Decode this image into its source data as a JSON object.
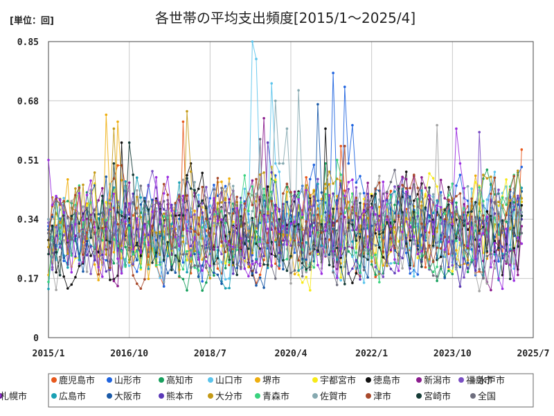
{
  "chart_data": {
    "type": "line",
    "title": "各世帯の平均支出頻度[2015/1～2025/4]",
    "unit_label": "[単位：回]",
    "xlabel": "",
    "ylabel": "",
    "x_range": [
      "2015-01",
      "2025-07"
    ],
    "x_ticks": [
      "2015/1",
      "2016/10",
      "2018/7",
      "2020/4",
      "2022/1",
      "2023/10",
      "2025/7"
    ],
    "y_ticks": [
      "0",
      "0.17",
      "0.34",
      "0.51",
      "0.68",
      "0.85"
    ],
    "ylim": [
      0,
      0.85
    ],
    "grid": true,
    "legend_position": "bottom",
    "series": [
      {
        "name": "鹿児島市",
        "color": "#e8581c",
        "start": 0.3,
        "end": 0.54,
        "peaks": [
          [
            "2017-12",
            0.62
          ],
          [
            "2021-05",
            0.55
          ]
        ]
      },
      {
        "name": "山形市",
        "color": "#1f64e0",
        "start": 0.32,
        "end": 0.49,
        "peaks": [
          [
            "2021-03",
            0.76
          ],
          [
            "2021-06",
            0.72
          ],
          [
            "2021-08",
            0.61
          ]
        ]
      },
      {
        "name": "高知市",
        "color": "#17a05d",
        "start": 0.3,
        "end": 0.42,
        "peaks": [
          [
            "2021-01",
            0.5
          ]
        ]
      },
      {
        "name": "山口市",
        "color": "#5bc4ec",
        "start": 0.3,
        "end": 0.43,
        "peaks": [
          [
            "2019-06",
            0.85
          ],
          [
            "2019-07",
            0.8
          ],
          [
            "2019-11",
            0.73
          ]
        ]
      },
      {
        "name": "堺市",
        "color": "#eeae0e",
        "start": 0.18,
        "end": 0.39,
        "peaks": [
          [
            "2016-04",
            0.64
          ],
          [
            "2016-07",
            0.62
          ]
        ]
      },
      {
        "name": "宇都宮市",
        "color": "#f7ea18",
        "start": 0.28,
        "end": 0.4,
        "peaks": [
          [
            "2019-11",
            0.49
          ]
        ]
      },
      {
        "name": "徳島市",
        "color": "#111111",
        "start": 0.28,
        "end": 0.38,
        "peaks": [
          [
            "2016-08",
            0.56
          ],
          [
            "2021-01",
            0.6
          ]
        ]
      },
      {
        "name": "新潟市",
        "color": "#8b1c8e",
        "start": 0.26,
        "end": 0.32,
        "peaks": [
          [
            "2019-09",
            0.63
          ]
        ]
      },
      {
        "name": "水戸市",
        "color": "#a3a3a3",
        "start": 0.34,
        "end": 0.36,
        "peaks": [
          [
            "2023-06",
            0.61
          ]
        ]
      },
      {
        "name": "福島市",
        "color": "#7a4fc4",
        "start": 0.33,
        "end": 0.35,
        "peaks": [
          [
            "2024-05",
            0.59
          ]
        ]
      },
      {
        "name": "広島市",
        "color": "#1aa0b4",
        "start": 0.14,
        "end": 0.43,
        "peaks": [
          [
            "2021-02",
            0.4
          ]
        ]
      },
      {
        "name": "大阪市",
        "color": "#1a5aa8",
        "start": 0.31,
        "end": 0.42,
        "peaks": [
          [
            "2020-11",
            0.67
          ]
        ]
      },
      {
        "name": "熊本市",
        "color": "#5b39b8",
        "start": 0.34,
        "end": 0.34,
        "peaks": [
          [
            "2019-10",
            0.56
          ]
        ]
      },
      {
        "name": "大分市",
        "color": "#c49a17",
        "start": 0.26,
        "end": 0.4,
        "peaks": [
          [
            "2018-01",
            0.65
          ],
          [
            "2016-06",
            0.6
          ]
        ]
      },
      {
        "name": "青森市",
        "color": "#39d27e",
        "start": 0.16,
        "end": 0.3,
        "peaks": [
          [
            "2021-04",
            0.51
          ]
        ]
      },
      {
        "name": "佐賀市",
        "color": "#86a9b0",
        "start": 0.34,
        "end": 0.36,
        "peaks": [
          [
            "2019-12",
            0.68
          ],
          [
            "2020-06",
            0.71
          ],
          [
            "2020-03",
            0.6
          ]
        ]
      },
      {
        "name": "津市",
        "color": "#a84a2c",
        "start": 0.3,
        "end": 0.27,
        "peaks": [
          [
            "2021-06",
            0.55
          ]
        ]
      },
      {
        "name": "宮崎市",
        "color": "#153b36",
        "start": 0.24,
        "end": 0.35,
        "peaks": [
          [
            "2016-10",
            0.56
          ],
          [
            "2016-06",
            0.5
          ]
        ]
      },
      {
        "name": "全国",
        "color": "#6e6e7e",
        "start": 0.3,
        "end": 0.3,
        "peaks": [
          [
            "2019-08",
            0.57
          ]
        ]
      },
      {
        "name": "札幌市",
        "color": "#9b2ee0",
        "start": 0.51,
        "end": 0.27,
        "peaks": [
          [
            "2023-11",
            0.6
          ]
        ]
      }
    ]
  }
}
